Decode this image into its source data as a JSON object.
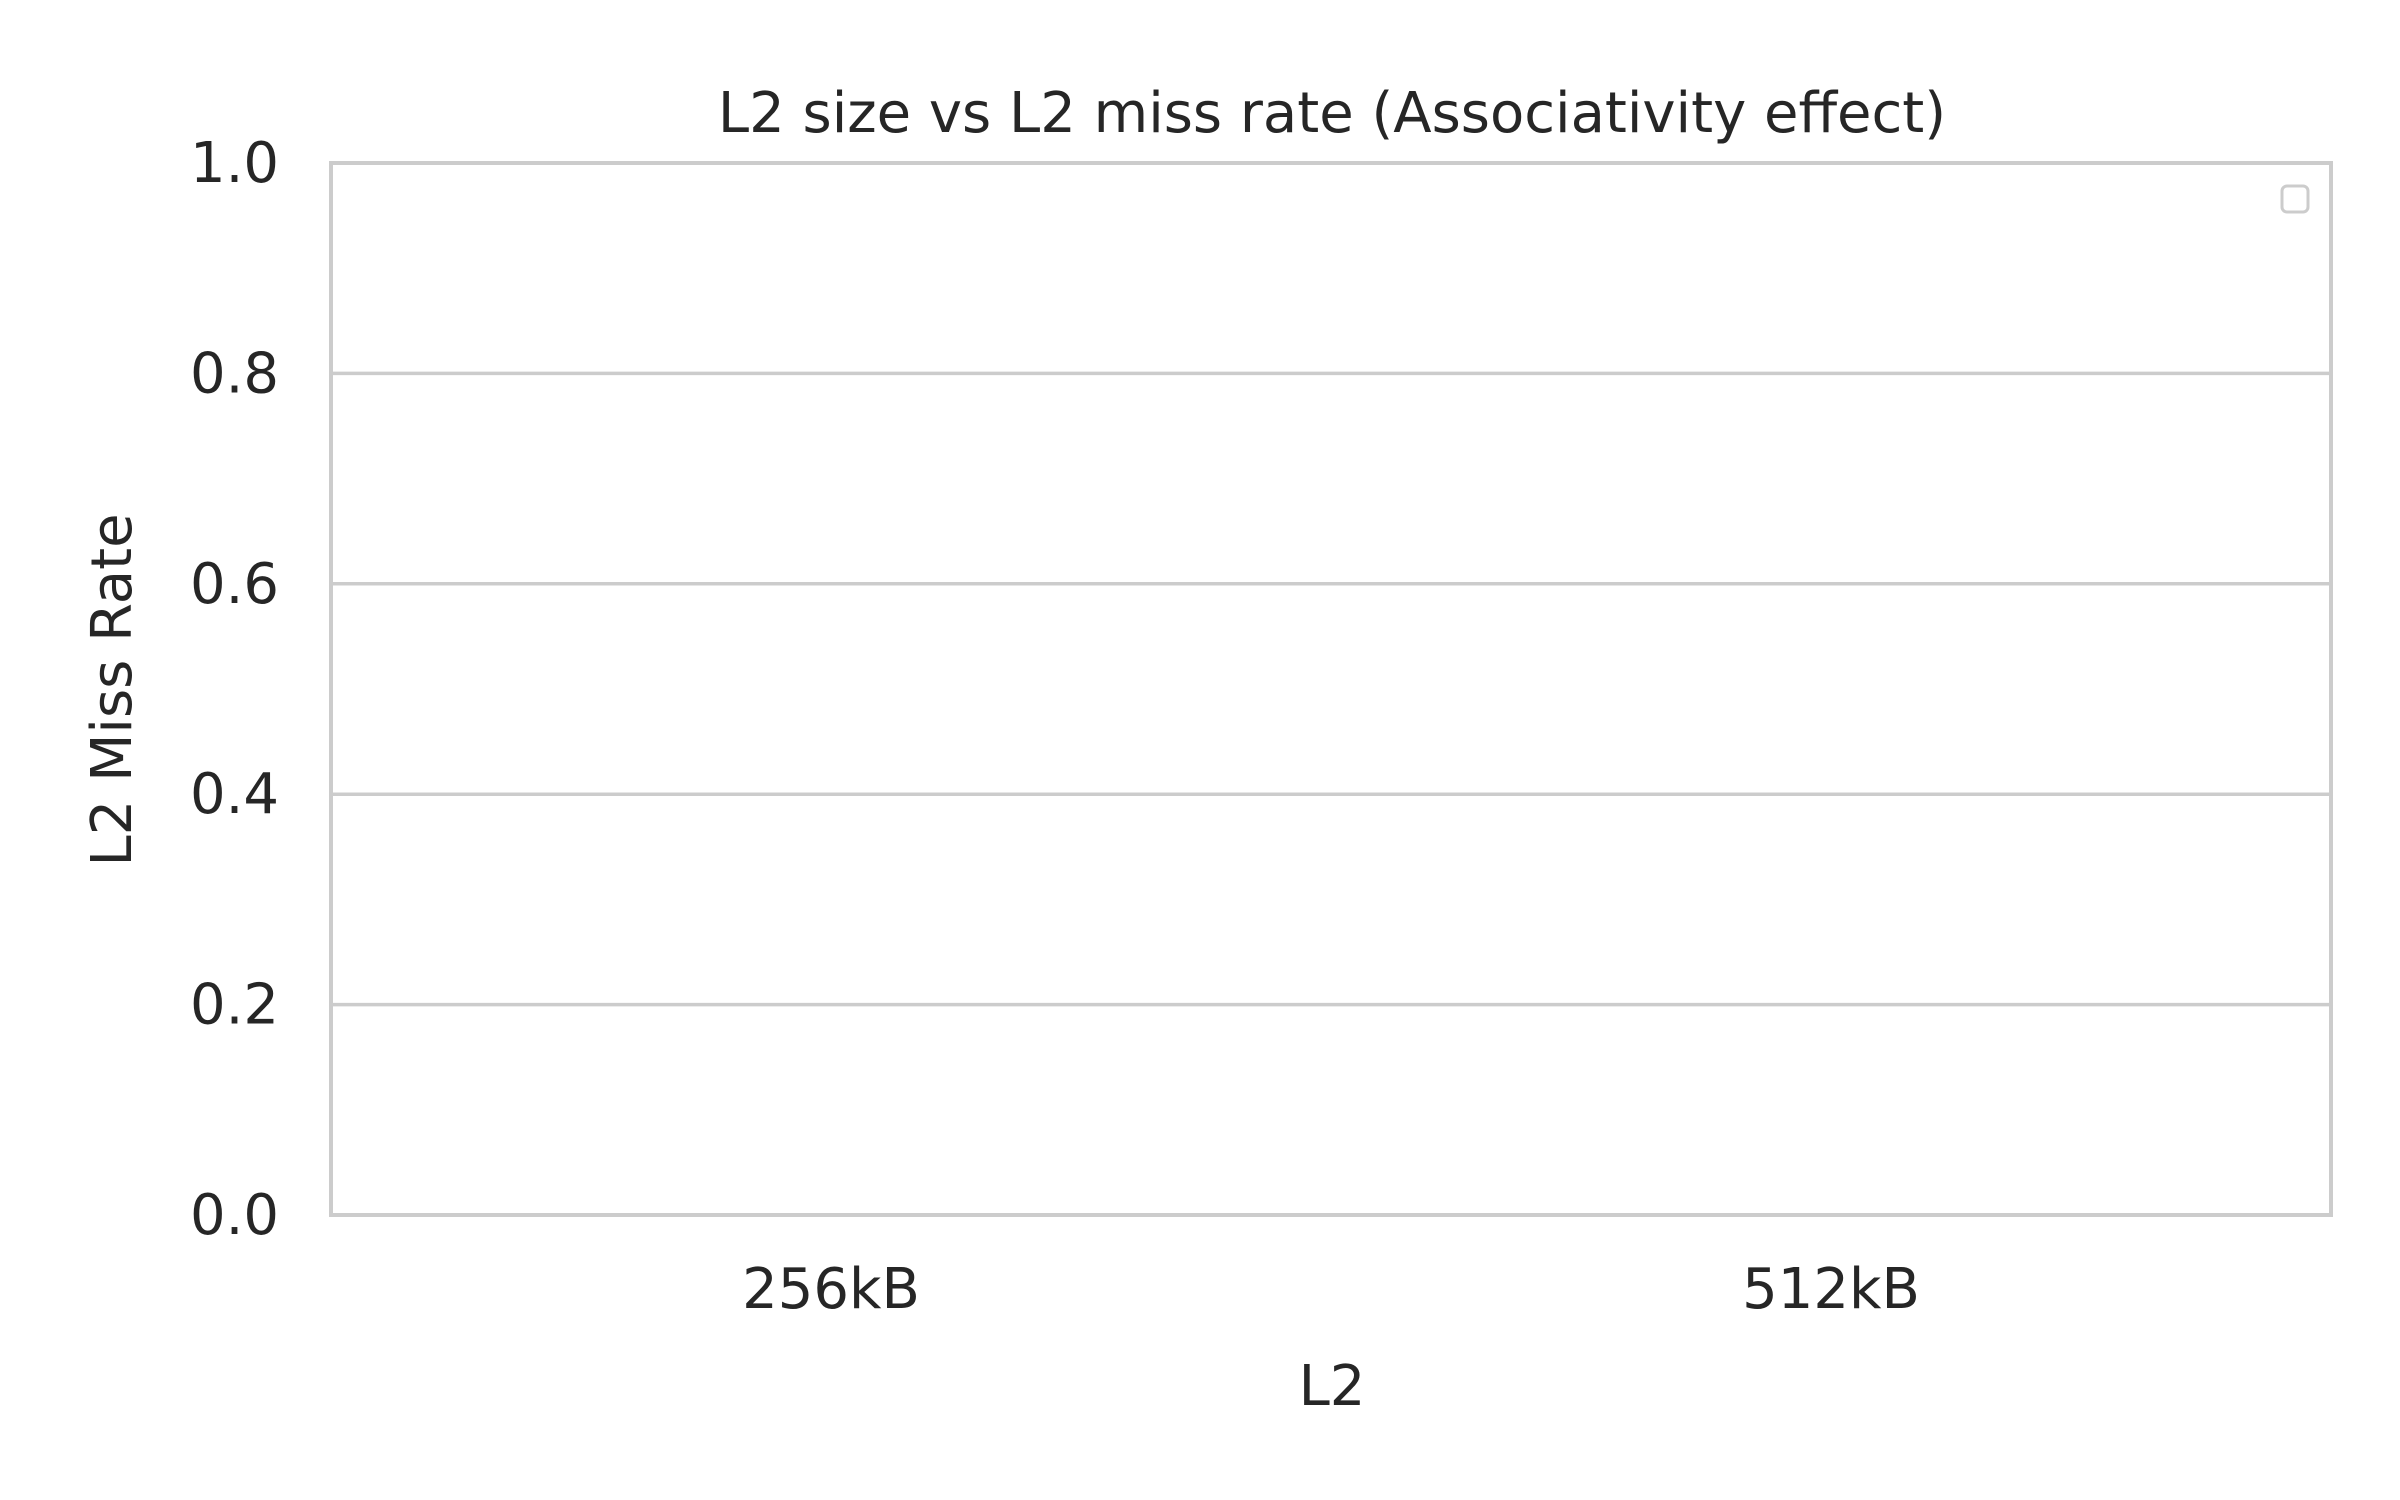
{
  "chart_data": {
    "type": "bar",
    "title": "L2 size vs L2 miss rate (Associativity effect)",
    "xlabel": "L2",
    "ylabel": "L2 Miss Rate",
    "categories": [
      "256kB",
      "512kB"
    ],
    "series": [],
    "ylim": [
      0,
      1
    ],
    "yticks": [
      "0.0",
      "0.2",
      "0.4",
      "0.6",
      "0.8",
      "1.0"
    ],
    "grid": true,
    "legend": {
      "position": "top-right",
      "entries": []
    },
    "colors": {
      "grid": "#cccccc",
      "spine": "#cccccc",
      "text": "#262626",
      "background": "#ffffff"
    }
  }
}
